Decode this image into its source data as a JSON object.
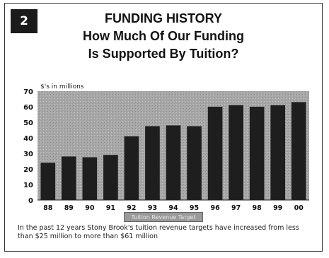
{
  "badge": "2",
  "title_line1": "FUNDING HISTORY",
  "title_line2": "How Much Of Our Funding",
  "title_line3": "Is Supported By Tuition?",
  "caption": "In the past 12 years Stony Brook's tuition revenue targets have increased from less than $25 million to more than $61 million",
  "chart_data": {
    "type": "bar",
    "title": "FUNDING HISTORY How Much Of Our Funding Is Supported By Tuition?",
    "ylabel": "$'s in millions",
    "xlabel": "",
    "categories": [
      "88",
      "89",
      "90",
      "91",
      "92",
      "93",
      "94",
      "95",
      "96",
      "97",
      "98",
      "99",
      "00"
    ],
    "series": [
      {
        "name": "Tuition Revenue Target",
        "values": [
          24,
          28,
          27.5,
          29,
          41,
          47.5,
          48,
          47.5,
          60,
          61,
          60,
          61,
          63
        ]
      }
    ],
    "ylim": [
      0,
      70
    ],
    "yticks": [
      0,
      10,
      20,
      30,
      40,
      50,
      60,
      70
    ],
    "grid": false,
    "legend": "bottom-center",
    "colors": {
      "bar": "#1e1e1e",
      "plot_bg": "#a8a8a8"
    }
  }
}
